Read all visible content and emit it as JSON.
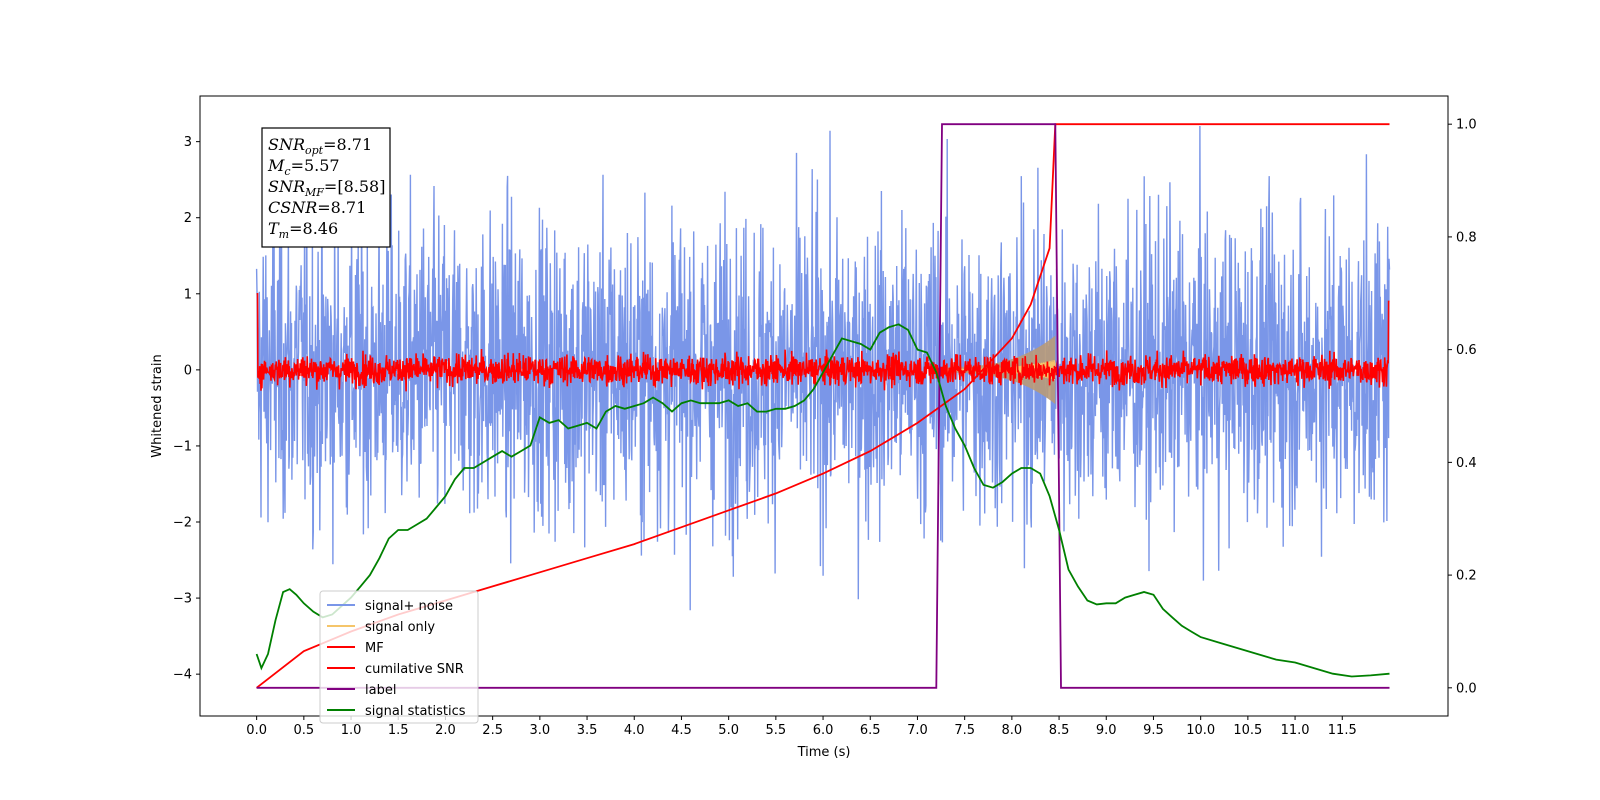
{
  "chart_data": {
    "type": "line",
    "xlabel": "Time (s)",
    "ylabel": "Whitened strain",
    "xlim": [
      -0.6,
      12.62
    ],
    "ylim": [
      -4.55,
      3.6
    ],
    "ylim_right": [
      -0.05,
      1.05
    ],
    "x_ticks": [
      0.0,
      0.5,
      1.0,
      1.5,
      2.0,
      2.5,
      3.0,
      3.5,
      4.0,
      4.5,
      5.0,
      5.5,
      6.0,
      6.5,
      7.0,
      7.5,
      8.0,
      8.5,
      9.0,
      9.5,
      10.0,
      10.5,
      11.0,
      11.5
    ],
    "x_tick_labels": [
      "0.0",
      "0.5",
      "1.0",
      "1.5",
      "2.0",
      "2.5",
      "3.0",
      "3.5",
      "4.0",
      "4.5",
      "5.0",
      "5.5",
      "6.0",
      "6.5",
      "7.0",
      "7.5",
      "8.0",
      "8.5",
      "9.0",
      "9.5",
      "10.0",
      "10.5",
      "11.0",
      "11.5"
    ],
    "y_ticks": [
      -4,
      -3,
      -2,
      -1,
      0,
      1,
      2,
      3
    ],
    "y_tick_labels": [
      "−4",
      "−3",
      "−2",
      "−1",
      "0",
      "1",
      "2",
      "3"
    ],
    "y_ticks_right": [
      0.0,
      0.2,
      0.4,
      0.6,
      0.8,
      1.0
    ],
    "y_tick_labels_right": [
      "0.0",
      "0.2",
      "0.4",
      "0.6",
      "0.8",
      "1.0"
    ],
    "legend_position": "lower-left",
    "annotation": {
      "lines": [
        {
          "var": "SNR",
          "sub": "opt",
          "value": "=8.71"
        },
        {
          "var": "M",
          "sub": "c",
          "value": "=5.57"
        },
        {
          "var": "SNR",
          "sub": "MF",
          "value": "=[8.58]"
        },
        {
          "var": "CSNR",
          "sub": "",
          "value": "=8.71"
        },
        {
          "var": "T",
          "sub": "m",
          "value": "=8.46"
        }
      ]
    },
    "series": [
      {
        "name": "signal+ noise",
        "color": "#7a96e8",
        "axis": "left",
        "style": "noise",
        "x_range": [
          0.0,
          12.0
        ],
        "std": 1.0
      },
      {
        "name": "signal only",
        "color": "#f5c56a",
        "axis": "left",
        "style": "chirp",
        "x_range": [
          7.2,
          8.46
        ],
        "peak_amplitude": 0.45
      },
      {
        "name": "MF",
        "color": "#ff0000",
        "axis": "left",
        "style": "noise",
        "x_range": [
          0.0,
          12.0
        ],
        "std": 0.1
      },
      {
        "name": "cumilative SNR",
        "color": "#ff0000",
        "axis": "right",
        "x": [
          0.0,
          0.5,
          1.0,
          1.5,
          2.0,
          2.5,
          3.0,
          3.5,
          4.0,
          4.5,
          5.0,
          5.5,
          6.0,
          6.5,
          7.0,
          7.5,
          8.0,
          8.2,
          8.4,
          8.46,
          8.5,
          12.0
        ],
        "y": [
          0.0,
          0.065,
          0.1,
          0.13,
          0.155,
          0.18,
          0.205,
          0.23,
          0.255,
          0.285,
          0.315,
          0.345,
          0.38,
          0.42,
          0.47,
          0.53,
          0.62,
          0.68,
          0.78,
          1.0,
          1.0,
          1.0
        ]
      },
      {
        "name": "label",
        "color": "#800080",
        "axis": "right",
        "x": [
          0.0,
          7.2,
          7.26,
          8.46,
          8.52,
          12.0
        ],
        "y": [
          0.0,
          0.0,
          1.0,
          1.0,
          0.0,
          0.0
        ]
      },
      {
        "name": "signal statistics",
        "color": "#008000",
        "axis": "right",
        "x": [
          0.0,
          0.05,
          0.12,
          0.2,
          0.28,
          0.35,
          0.42,
          0.5,
          0.6,
          0.7,
          0.8,
          0.9,
          1.0,
          1.1,
          1.2,
          1.3,
          1.4,
          1.5,
          1.6,
          1.7,
          1.8,
          1.9,
          2.0,
          2.1,
          2.2,
          2.3,
          2.4,
          2.5,
          2.6,
          2.7,
          2.8,
          2.9,
          3.0,
          3.1,
          3.2,
          3.3,
          3.4,
          3.5,
          3.6,
          3.7,
          3.8,
          3.9,
          4.0,
          4.1,
          4.2,
          4.3,
          4.4,
          4.5,
          4.6,
          4.7,
          4.8,
          4.9,
          5.0,
          5.1,
          5.2,
          5.3,
          5.4,
          5.5,
          5.6,
          5.7,
          5.8,
          5.9,
          6.0,
          6.1,
          6.2,
          6.3,
          6.4,
          6.5,
          6.6,
          6.7,
          6.8,
          6.9,
          7.0,
          7.1,
          7.2,
          7.3,
          7.4,
          7.5,
          7.6,
          7.7,
          7.8,
          7.9,
          8.0,
          8.1,
          8.2,
          8.3,
          8.4,
          8.5,
          8.6,
          8.7,
          8.8,
          8.9,
          9.0,
          9.1,
          9.2,
          9.3,
          9.4,
          9.5,
          9.6,
          9.7,
          9.8,
          9.9,
          10.0,
          10.2,
          10.4,
          10.6,
          10.8,
          11.0,
          11.2,
          11.4,
          11.6,
          11.8,
          12.0
        ],
        "y": [
          0.06,
          0.035,
          0.06,
          0.12,
          0.17,
          0.175,
          0.165,
          0.15,
          0.135,
          0.125,
          0.13,
          0.145,
          0.16,
          0.18,
          0.2,
          0.23,
          0.265,
          0.28,
          0.28,
          0.29,
          0.3,
          0.32,
          0.34,
          0.37,
          0.39,
          0.39,
          0.4,
          0.41,
          0.42,
          0.41,
          0.42,
          0.43,
          0.48,
          0.47,
          0.475,
          0.46,
          0.465,
          0.47,
          0.46,
          0.49,
          0.5,
          0.495,
          0.5,
          0.505,
          0.515,
          0.505,
          0.49,
          0.505,
          0.51,
          0.505,
          0.505,
          0.505,
          0.51,
          0.5,
          0.505,
          0.49,
          0.49,
          0.495,
          0.495,
          0.5,
          0.51,
          0.53,
          0.56,
          0.59,
          0.62,
          0.615,
          0.61,
          0.6,
          0.63,
          0.64,
          0.645,
          0.635,
          0.6,
          0.595,
          0.56,
          0.5,
          0.46,
          0.43,
          0.39,
          0.36,
          0.355,
          0.365,
          0.38,
          0.39,
          0.39,
          0.38,
          0.34,
          0.28,
          0.21,
          0.18,
          0.155,
          0.148,
          0.15,
          0.15,
          0.16,
          0.165,
          0.17,
          0.165,
          0.14,
          0.125,
          0.11,
          0.1,
          0.09,
          0.08,
          0.07,
          0.06,
          0.05,
          0.045,
          0.035,
          0.025,
          0.02,
          0.022,
          0.025
        ]
      }
    ]
  }
}
